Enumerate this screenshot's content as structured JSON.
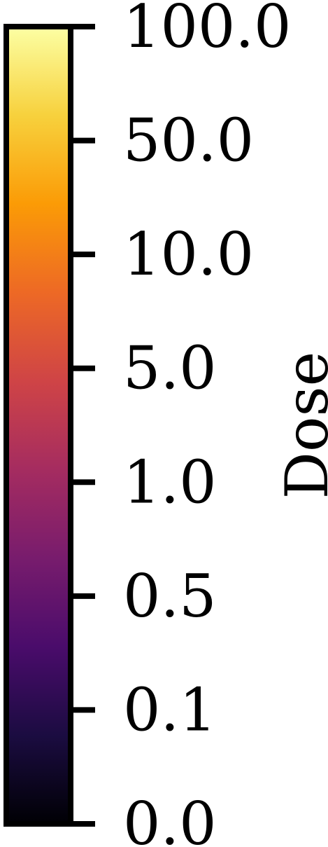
{
  "chart_data": {
    "type": "colorbar",
    "colormap": "inferno",
    "orientation": "vertical",
    "label": "Dose",
    "ticks": [
      "0.0",
      "0.1",
      "0.5",
      "1.0",
      "5.0",
      "10.0",
      "50.0",
      "100.0"
    ],
    "tick_spacing": "even",
    "colors": [
      "#000004",
      "#1b0c41",
      "#4a0c6b",
      "#781c6d",
      "#a52c60",
      "#cf4446",
      "#ed6925",
      "#fb9b06",
      "#f7d13d",
      "#fcffa4"
    ],
    "frame_color": "#000000"
  }
}
